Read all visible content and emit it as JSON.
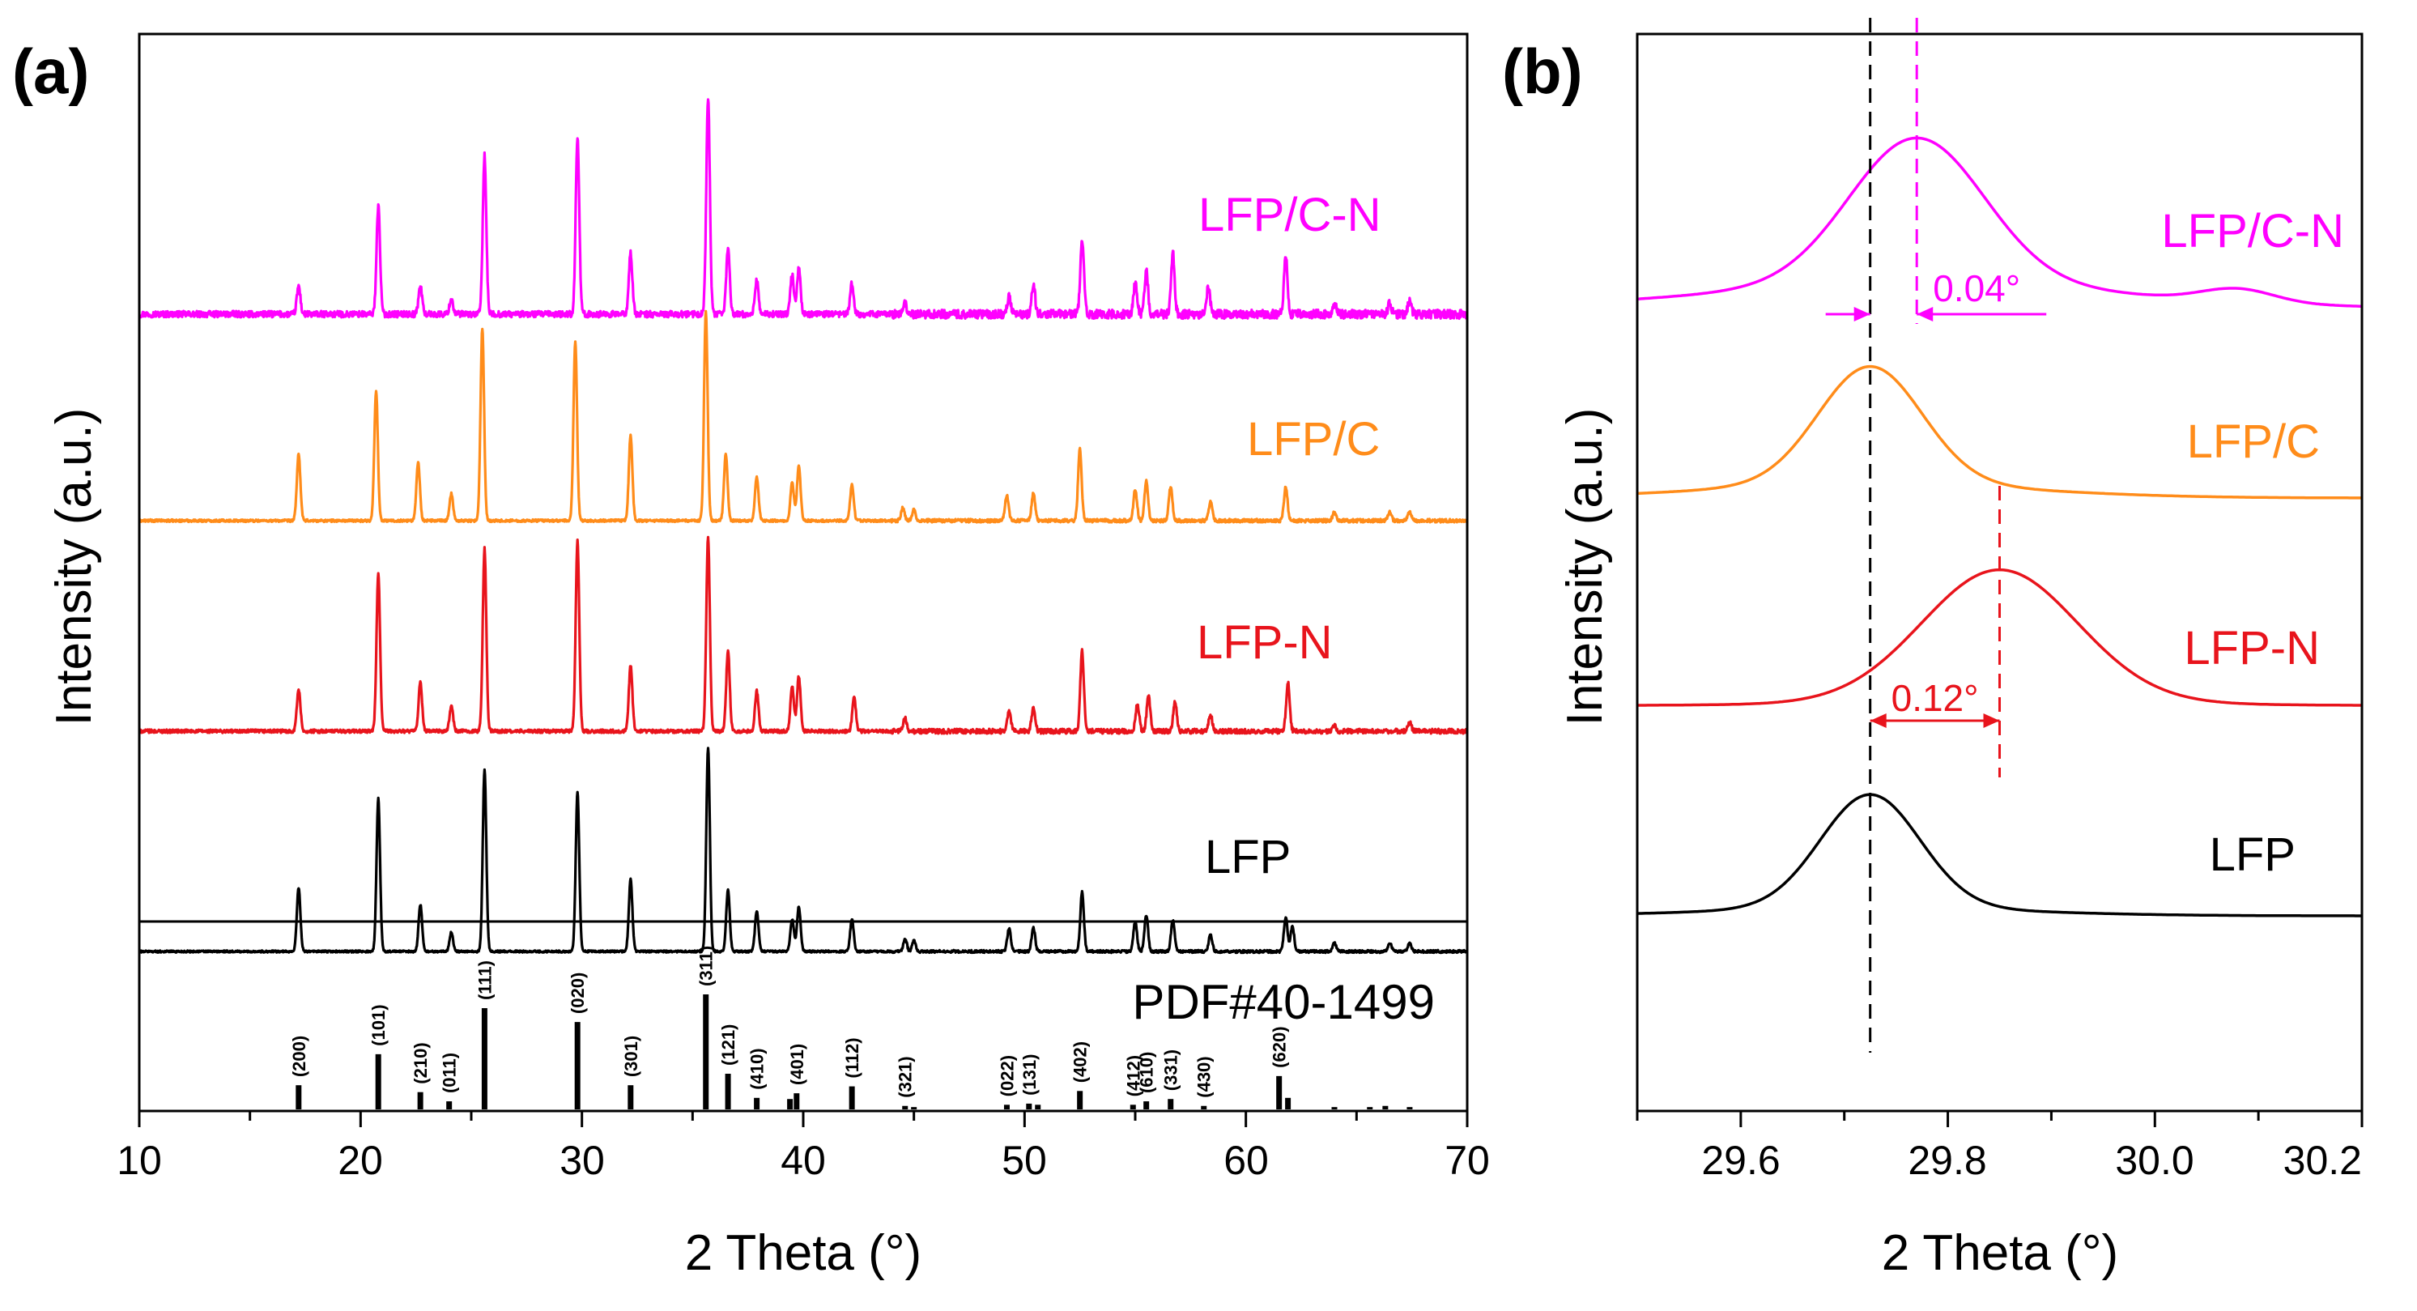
{
  "chart_data": [
    {
      "panel": "(a)",
      "type": "line",
      "xlabel": "2 Theta (°)",
      "ylabel": "Intensity (a.u.)",
      "xlim": [
        10,
        70
      ],
      "xticks": [
        "10",
        "20",
        "30",
        "40",
        "50",
        "60",
        "70"
      ],
      "grid": false,
      "series": [
        {
          "name": "LFP/C-N",
          "color": "#ff00ff",
          "label": "LFP/C-N",
          "noise": 1.3,
          "peaks": [
            [
              17.2,
              0.13
            ],
            [
              20.8,
              0.5
            ],
            [
              22.7,
              0.13
            ],
            [
              24.1,
              0.07
            ],
            [
              25.6,
              0.73
            ],
            [
              29.8,
              0.82
            ],
            [
              32.2,
              0.28
            ],
            [
              35.7,
              1.0
            ],
            [
              36.6,
              0.3
            ],
            [
              37.9,
              0.16
            ],
            [
              39.5,
              0.18
            ],
            [
              39.8,
              0.21
            ],
            [
              42.2,
              0.14
            ],
            [
              44.6,
              0.05
            ],
            [
              49.3,
              0.08
            ],
            [
              50.4,
              0.14
            ],
            [
              52.6,
              0.35
            ],
            [
              55.0,
              0.14
            ],
            [
              55.5,
              0.2
            ],
            [
              56.7,
              0.28
            ],
            [
              58.3,
              0.12
            ],
            [
              61.8,
              0.26
            ],
            [
              64.0,
              0.05
            ],
            [
              66.5,
              0.05
            ],
            [
              67.4,
              0.06
            ]
          ]
        },
        {
          "name": "LFP/C",
          "color": "#ff8c1a",
          "label": "LFP/C",
          "noise": 0.5,
          "peaks": [
            [
              17.2,
              0.32
            ],
            [
              20.7,
              0.62
            ],
            [
              22.6,
              0.28
            ],
            [
              24.1,
              0.13
            ],
            [
              25.5,
              0.92
            ],
            [
              29.7,
              0.86
            ],
            [
              32.2,
              0.41
            ],
            [
              35.6,
              1.0
            ],
            [
              36.5,
              0.32
            ],
            [
              37.9,
              0.21
            ],
            [
              39.5,
              0.18
            ],
            [
              39.8,
              0.26
            ],
            [
              42.2,
              0.17
            ],
            [
              44.5,
              0.06
            ],
            [
              45.0,
              0.05
            ],
            [
              49.2,
              0.12
            ],
            [
              50.4,
              0.13
            ],
            [
              52.5,
              0.34
            ],
            [
              55.0,
              0.15
            ],
            [
              55.5,
              0.19
            ],
            [
              56.6,
              0.16
            ],
            [
              58.4,
              0.09
            ],
            [
              61.8,
              0.16
            ],
            [
              64.0,
              0.04
            ],
            [
              66.5,
              0.04
            ],
            [
              67.4,
              0.04
            ]
          ]
        },
        {
          "name": "LFP-N",
          "color": "#e8141c",
          "label": "LFP-N",
          "noise": 0.7,
          "peaks": [
            [
              17.2,
              0.2
            ],
            [
              20.8,
              0.75
            ],
            [
              22.7,
              0.23
            ],
            [
              24.1,
              0.12
            ],
            [
              25.6,
              0.87
            ],
            [
              29.8,
              0.91
            ],
            [
              32.2,
              0.31
            ],
            [
              35.7,
              0.92
            ],
            [
              36.6,
              0.38
            ],
            [
              37.9,
              0.19
            ],
            [
              39.5,
              0.21
            ],
            [
              39.8,
              0.26
            ],
            [
              42.3,
              0.16
            ],
            [
              44.6,
              0.06
            ],
            [
              49.3,
              0.1
            ],
            [
              50.4,
              0.11
            ],
            [
              52.6,
              0.38
            ],
            [
              55.1,
              0.13
            ],
            [
              55.6,
              0.17
            ],
            [
              56.8,
              0.14
            ],
            [
              58.4,
              0.08
            ],
            [
              61.9,
              0.23
            ],
            [
              64.0,
              0.03
            ],
            [
              67.4,
              0.04
            ]
          ]
        },
        {
          "name": "LFP",
          "color": "#000000",
          "label": "LFP",
          "noise": 0.4,
          "peaks": [
            [
              17.2,
              0.3
            ],
            [
              20.8,
              0.72
            ],
            [
              22.7,
              0.22
            ],
            [
              24.1,
              0.09
            ],
            [
              25.6,
              0.86
            ],
            [
              29.8,
              0.75
            ],
            [
              32.2,
              0.34
            ],
            [
              35.7,
              0.96
            ],
            [
              36.6,
              0.29
            ],
            [
              37.9,
              0.19
            ],
            [
              39.5,
              0.15
            ],
            [
              39.8,
              0.21
            ],
            [
              42.2,
              0.15
            ],
            [
              44.6,
              0.06
            ],
            [
              45.0,
              0.05
            ],
            [
              49.3,
              0.11
            ],
            [
              50.4,
              0.11
            ],
            [
              52.6,
              0.28
            ],
            [
              55.0,
              0.14
            ],
            [
              55.5,
              0.17
            ],
            [
              56.7,
              0.15
            ],
            [
              58.4,
              0.08
            ],
            [
              61.8,
              0.16
            ],
            [
              62.1,
              0.12
            ],
            [
              64.0,
              0.04
            ],
            [
              66.5,
              0.04
            ],
            [
              67.4,
              0.04
            ]
          ]
        }
      ],
      "reference": {
        "label": "PDF#40-1499",
        "sticks": [
          {
            "x": 17.2,
            "h": 0.21,
            "hkl": "(200)"
          },
          {
            "x": 20.8,
            "h": 0.48,
            "hkl": "(101)"
          },
          {
            "x": 22.7,
            "h": 0.15,
            "hkl": "(210)"
          },
          {
            "x": 24.0,
            "h": 0.07,
            "hkl": "(011)"
          },
          {
            "x": 25.6,
            "h": 0.88,
            "hkl": "(111)"
          },
          {
            "x": 29.8,
            "h": 0.76,
            "hkl": "(020)"
          },
          {
            "x": 32.2,
            "h": 0.21,
            "hkl": "(301)"
          },
          {
            "x": 35.6,
            "h": 1.0,
            "hkl": "(311)"
          },
          {
            "x": 36.6,
            "h": 0.31,
            "hkl": "(121)"
          },
          {
            "x": 37.9,
            "h": 0.1,
            "hkl": "(410)"
          },
          {
            "x": 39.4,
            "h": 0.09,
            "hkl": ""
          },
          {
            "x": 39.7,
            "h": 0.14,
            "hkl": "(401)"
          },
          {
            "x": 42.2,
            "h": 0.2,
            "hkl": "(112)"
          },
          {
            "x": 44.6,
            "h": 0.03,
            "hkl": "(321)"
          },
          {
            "x": 45.0,
            "h": 0.02,
            "hkl": ""
          },
          {
            "x": 49.2,
            "h": 0.04,
            "hkl": "(022)"
          },
          {
            "x": 50.2,
            "h": 0.05,
            "hkl": "(131)"
          },
          {
            "x": 50.6,
            "h": 0.04,
            "hkl": ""
          },
          {
            "x": 52.5,
            "h": 0.16,
            "hkl": "(402)"
          },
          {
            "x": 54.9,
            "h": 0.04,
            "hkl": "(412)"
          },
          {
            "x": 55.5,
            "h": 0.07,
            "hkl": "(610)"
          },
          {
            "x": 56.6,
            "h": 0.09,
            "hkl": "(331)"
          },
          {
            "x": 58.1,
            "h": 0.03,
            "hkl": "(430)"
          },
          {
            "x": 61.5,
            "h": 0.29,
            "hkl": "(620)"
          },
          {
            "x": 61.9,
            "h": 0.1,
            "hkl": ""
          },
          {
            "x": 64.0,
            "h": 0.02,
            "hkl": ""
          },
          {
            "x": 65.6,
            "h": 0.02,
            "hkl": ""
          },
          {
            "x": 66.3,
            "h": 0.03,
            "hkl": ""
          },
          {
            "x": 67.4,
            "h": 0.02,
            "hkl": ""
          }
        ]
      }
    },
    {
      "panel": "(b)",
      "type": "line",
      "xlabel": "2 Theta (°)",
      "ylabel": "Intensity (a.u.)",
      "xlim": [
        29.5,
        30.2
      ],
      "xticks": [
        "29.6",
        "29.8",
        "30.0",
        "30.2"
      ],
      "grid": false,
      "series": [
        {
          "name": "LFP/C-N",
          "color": "#ff00ff",
          "label": "LFP/C-N",
          "peak": 29.77,
          "sigma": 0.065,
          "tail": 0.17,
          "bump_x": 30.08,
          "bump_h": 0.09
        },
        {
          "name": "LFP/C",
          "color": "#ff8c1a",
          "label": "LFP/C",
          "peak": 29.725,
          "sigma": 0.05,
          "tail": 0.12
        },
        {
          "name": "LFP-N",
          "color": "#e8141c",
          "label": "LFP-N",
          "peak": 29.85,
          "sigma": 0.075,
          "tail": 0.02
        },
        {
          "name": "LFP",
          "color": "#000000",
          "label": "LFP",
          "peak": 29.725,
          "sigma": 0.048,
          "tail": 0.07
        }
      ],
      "reference_line_x": 29.725,
      "annotations": [
        {
          "text": "0.04°",
          "color": "#ff00ff",
          "from": 29.725,
          "to": 29.77
        },
        {
          "text": "0.12°",
          "color": "#e8141c",
          "from": 29.725,
          "to": 29.85
        }
      ]
    }
  ]
}
